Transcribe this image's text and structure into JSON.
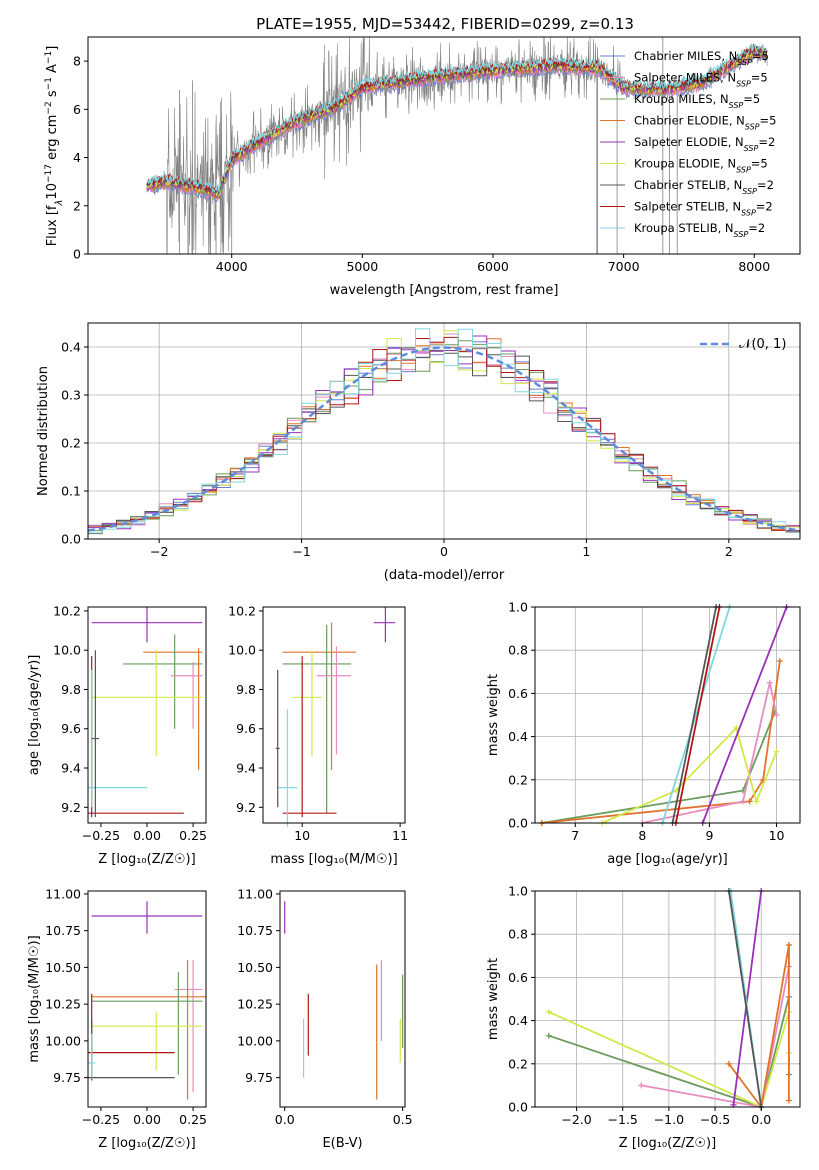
{
  "title": "PLATE=1955, MJD=53442, FIBERID=0299, z=0.13",
  "colors": {
    "Chabrier MILES": "#6a7fd0",
    "Salpeter MILES": "#e88cbf",
    "Kroupa MILES": "#6a9c5c",
    "Chabrier ELODIE": "#e0742c",
    "Salpeter ELODIE": "#9a30b8",
    "Kroupa ELODIE": "#d2e84a",
    "Chabrier STELIB": "#555555",
    "Salpeter STELIB": "#b01818",
    "Kroupa STELIB": "#7fd7e0",
    "data": "#808080",
    "normal": "#5e8cdc"
  },
  "chart_data": [
    {
      "id": "spectrum",
      "type": "line",
      "title": "PLATE=1955, MJD=53442, FIBERID=0299, z=0.13",
      "xlabel": "wavelength [Angstrom, rest frame]",
      "ylabel_parts": [
        "Flux [f",
        "λ",
        "10",
        "−17",
        " erg cm",
        "−2",
        " s",
        "−1",
        " A",
        "−1",
        "]"
      ],
      "xlim": [
        2900,
        8350
      ],
      "ylim": [
        0,
        9
      ],
      "xticks": [
        4000,
        5000,
        6000,
        7000,
        8000
      ],
      "yticks": [
        0,
        2,
        4,
        6,
        8
      ],
      "legend": [
        {
          "model": "Chabrier MILES",
          "label": "Chabrier MILES, N",
          "sub": "SSP",
          "tail": "=5"
        },
        {
          "model": "Salpeter MILES",
          "label": "Salpeter MILES, N",
          "sub": "SSP",
          "tail": "=5"
        },
        {
          "model": "Kroupa MILES",
          "label": "Kroupa MILES, N",
          "sub": "SSP",
          "tail": "=5"
        },
        {
          "model": "Chabrier ELODIE",
          "label": "Chabrier ELODIE, N",
          "sub": "SSP",
          "tail": "=5"
        },
        {
          "model": "Salpeter ELODIE",
          "label": "Salpeter ELODIE, N",
          "sub": "SSP",
          "tail": "=2"
        },
        {
          "model": "Kroupa ELODIE",
          "label": "Kroupa ELODIE, N",
          "sub": "SSP",
          "tail": "=5"
        },
        {
          "model": "Chabrier STELIB",
          "label": "Chabrier STELIB, N",
          "sub": "SSP",
          "tail": "=2"
        },
        {
          "model": "Salpeter STELIB",
          "label": "Salpeter STELIB, N",
          "sub": "SSP",
          "tail": "=2"
        },
        {
          "model": "Kroupa STELIB",
          "label": "Kroupa STELIB, N",
          "sub": "SSP",
          "tail": "=2"
        }
      ],
      "continuum": {
        "x": [
          3350,
          3500,
          3700,
          3900,
          4000,
          4200,
          4500,
          4800,
          5000,
          5500,
          6000,
          6500,
          6800,
          7000,
          7300,
          7600,
          8000,
          8100
        ],
        "y": [
          2.8,
          3.0,
          2.8,
          2.5,
          3.9,
          4.6,
          5.5,
          6.1,
          6.9,
          7.3,
          7.6,
          7.8,
          7.7,
          6.9,
          6.8,
          7.1,
          8.4,
          8.2
        ]
      }
    },
    {
      "id": "residuals",
      "type": "line",
      "xlabel": "(data-model)/error",
      "ylabel": "Normed distribution",
      "xlim": [
        -2.5,
        2.5
      ],
      "ylim": [
        0,
        0.45
      ],
      "xticks": [
        -2,
        -1,
        0,
        1,
        2
      ],
      "yticks": [
        0.0,
        0.1,
        0.2,
        0.3,
        0.4
      ],
      "legend": "upper right",
      "normal_label": "𝒩(0, 1)",
      "grid": true
    },
    {
      "id": "age-vs-Z",
      "type": "scatter",
      "xlabel": "Z [log₁₀(Z/Z☉)]",
      "ylabel": "age  [log₁₀(age/yr)]",
      "xlim": [
        -0.32,
        0.32
      ],
      "ylim": [
        9.12,
        10.22
      ],
      "xticks": [
        -0.25,
        0.0,
        0.25
      ],
      "xticklabels": [
        "−0.25",
        "0.00",
        "0.25"
      ],
      "yticks": [
        9.2,
        9.4,
        9.6,
        9.8,
        10.0,
        10.2
      ],
      "points": [
        {
          "model": "Salpeter ELODIE",
          "x": 0.0,
          "xerr": [
            0.3,
            0.3
          ],
          "y": 10.14,
          "yerr": [
            0.1,
            0.08
          ]
        },
        {
          "model": "Chabrier ELODIE",
          "x": 0.28,
          "xerr": [
            0.3,
            0.02
          ],
          "y": 9.99,
          "yerr": [
            0.6,
            0.02
          ]
        },
        {
          "model": "Kroupa MILES",
          "x": 0.15,
          "xerr": [
            0.28,
            0.15
          ],
          "y": 9.93,
          "yerr": [
            0.33,
            0.15
          ]
        },
        {
          "model": "Salpeter MILES",
          "x": 0.25,
          "xerr": [
            0.12,
            0.05
          ],
          "y": 9.87,
          "yerr": [
            0.27,
            0.07
          ]
        },
        {
          "model": "Kroupa ELODIE",
          "x": 0.05,
          "xerr": [
            0.35,
            0.25
          ],
          "y": 9.76,
          "yerr": [
            0.3,
            0.24
          ]
        },
        {
          "model": "Salpeter STELIB",
          "x": -0.3,
          "xerr": [
            0.02,
            0.5
          ],
          "y": 9.17,
          "yerr": [
            0.02,
            0.8
          ]
        },
        {
          "model": "Kroupa STELIB",
          "x": -0.3,
          "xerr": [
            0.02,
            0.3
          ],
          "y": 9.3,
          "yerr": [
            0.1,
            0.6
          ]
        },
        {
          "model": "Chabrier STELIB",
          "x": -0.28,
          "xerr": [
            0.02,
            0.02
          ],
          "y": 9.55,
          "yerr": [
            0.4,
            0.45
          ]
        }
      ]
    },
    {
      "id": "age-vs-mass",
      "type": "scatter",
      "xlabel": "mass [log₁₀(M/M☉)]",
      "xlim": [
        9.6,
        11.05
      ],
      "ylim": [
        9.12,
        10.22
      ],
      "xticks": [
        10,
        11
      ],
      "yticks": [
        9.2,
        9.4,
        9.6,
        9.8,
        10.0,
        10.2
      ],
      "points": [
        {
          "model": "Salpeter ELODIE",
          "x": 10.85,
          "xerr": [
            0.12,
            0.1
          ],
          "y": 10.14,
          "yerr": [
            0.1,
            0.08
          ]
        },
        {
          "model": "Chabrier ELODIE",
          "x": 10.3,
          "xerr": [
            0.5,
            0.25
          ],
          "y": 9.99,
          "yerr": [
            0.6,
            0.15
          ]
        },
        {
          "model": "Kroupa MILES",
          "x": 10.25,
          "xerr": [
            0.45,
            0.25
          ],
          "y": 9.93,
          "yerr": [
            0.76,
            0.2
          ]
        },
        {
          "model": "Salpeter MILES",
          "x": 10.35,
          "xerr": [
            0.2,
            0.15
          ],
          "y": 9.87,
          "yerr": [
            0.4,
            0.15
          ]
        },
        {
          "model": "Kroupa ELODIE",
          "x": 10.1,
          "xerr": [
            0.2,
            0.1
          ],
          "y": 9.76,
          "yerr": [
            0.3,
            0.24
          ]
        },
        {
          "model": "Salpeter STELIB",
          "x": 10.0,
          "xerr": [
            0.2,
            0.35
          ],
          "y": 9.17,
          "yerr": [
            0.02,
            0.8
          ]
        },
        {
          "model": "Kroupa STELIB",
          "x": 9.85,
          "xerr": [
            0.1,
            0.1
          ],
          "y": 9.3,
          "yerr": [
            0.2,
            0.4
          ]
        },
        {
          "model": "Chabrier STELIB",
          "x": 9.75,
          "xerr": [
            0.02,
            0.02
          ],
          "y": 9.5,
          "yerr": [
            0.3,
            0.4
          ]
        }
      ]
    },
    {
      "id": "mass-weight-vs-age",
      "type": "line",
      "xlabel": "age  [log₁₀(age/yr)]",
      "ylabel": "mass weight",
      "xlim": [
        6.4,
        10.35
      ],
      "ylim": [
        0,
        1
      ],
      "xticks": [
        7,
        8,
        9,
        10
      ],
      "yticks": [
        0.0,
        0.2,
        0.4,
        0.6,
        0.8,
        1.0
      ],
      "grid": true,
      "series": [
        {
          "model": "Kroupa MILES",
          "x": [
            6.5,
            9.5,
            9.97
          ],
          "y": [
            0.0,
            0.15,
            0.51
          ]
        },
        {
          "model": "Chabrier ELODIE",
          "x": [
            6.5,
            9.6,
            9.8,
            10.05
          ],
          "y": [
            0.0,
            0.1,
            0.2,
            0.75
          ]
        },
        {
          "model": "Salpeter MILES",
          "x": [
            8.0,
            9.5,
            9.9,
            10.0
          ],
          "y": [
            0.0,
            0.1,
            0.65,
            0.5
          ]
        },
        {
          "model": "Kroupa ELODIE",
          "x": [
            7.4,
            8.5,
            9.4,
            9.7,
            10.0
          ],
          "y": [
            0.0,
            0.15,
            0.44,
            0.1,
            0.33
          ]
        },
        {
          "model": "Salpeter ELODIE",
          "x": [
            8.9,
            10.15
          ],
          "y": [
            0.0,
            1.0
          ]
        },
        {
          "model": "Kroupa STELIB",
          "x": [
            8.3,
            9.3
          ],
          "y": [
            0.0,
            1.0
          ]
        },
        {
          "model": "Salpeter STELIB",
          "x": [
            8.5,
            9.15
          ],
          "y": [
            0.0,
            1.0
          ]
        },
        {
          "model": "Chabrier STELIB",
          "x": [
            8.45,
            9.1
          ],
          "y": [
            0.0,
            1.0
          ]
        }
      ]
    },
    {
      "id": "mass-vs-Z",
      "type": "scatter",
      "xlabel": "Z [log₁₀(Z/Z☉)]",
      "ylabel": "mass [log₁₀(M/M☉)]",
      "xlim": [
        -0.32,
        0.32
      ],
      "ylim": [
        9.55,
        11.02
      ],
      "xticks": [
        -0.25,
        0.0,
        0.25
      ],
      "xticklabels": [
        "−0.25",
        "0.00",
        "0.25"
      ],
      "yticks": [
        9.75,
        10.0,
        10.25,
        10.5,
        10.75,
        11.0
      ],
      "points": [
        {
          "model": "Salpeter ELODIE",
          "x": 0.0,
          "xerr": [
            0.3,
            0.3
          ],
          "y": 10.85,
          "yerr": [
            0.12,
            0.1
          ]
        },
        {
          "model": "Salpeter MILES",
          "x": 0.25,
          "xerr": [
            0.1,
            0.05
          ],
          "y": 10.35,
          "yerr": [
            0.7,
            0.2
          ]
        },
        {
          "model": "Chabrier ELODIE",
          "x": 0.22,
          "xerr": [
            0.52,
            0.1
          ],
          "y": 10.3,
          "yerr": [
            0.7,
            0.25
          ]
        },
        {
          "model": "Kroupa MILES",
          "x": 0.17,
          "xerr": [
            0.47,
            0.13
          ],
          "y": 10.27,
          "yerr": [
            0.5,
            0.2
          ]
        },
        {
          "model": "Kroupa ELODIE",
          "x": 0.05,
          "xerr": [
            0.35,
            0.25
          ],
          "y": 10.1,
          "yerr": [
            0.3,
            0.1
          ]
        },
        {
          "model": "Salpeter STELIB",
          "x": -0.3,
          "xerr": [
            0.02,
            0.45
          ],
          "y": 9.92,
          "yerr": [
            0.02,
            0.4
          ]
        },
        {
          "model": "Chabrier STELIB",
          "x": -0.3,
          "xerr": [
            0.02,
            0.45
          ],
          "y": 9.75,
          "yerr": [
            0.02,
            0.4
          ]
        },
        {
          "model": "Kroupa STELIB",
          "x": -0.3,
          "xerr": [
            0.02,
            0.02
          ],
          "y": 9.85,
          "yerr": [
            0.1,
            0.2
          ]
        }
      ]
    },
    {
      "id": "mass-vs-EBV",
      "type": "scatter",
      "xlabel": "E(B-V)",
      "xlim": [
        -0.02,
        0.51
      ],
      "ylim": [
        9.55,
        11.02
      ],
      "xticks": [
        0.0,
        0.5
      ],
      "yticks": [
        9.75,
        10.0,
        10.25,
        10.5,
        10.75,
        11.0
      ],
      "points": [
        {
          "model": "Salpeter ELODIE",
          "x": 0.0,
          "xerr": [
            0.0,
            0.0
          ],
          "y": 10.85,
          "yerr": [
            0.12,
            0.1
          ]
        },
        {
          "model": "Kroupa STELIB",
          "x": 0.08,
          "xerr": [
            0.0,
            0.0
          ],
          "y": 9.95,
          "yerr": [
            0.2,
            0.2
          ]
        },
        {
          "model": "Salpeter STELIB",
          "x": 0.1,
          "xerr": [
            0.0,
            0.0
          ],
          "y": 10.1,
          "yerr": [
            0.2,
            0.22
          ]
        },
        {
          "model": "Chabrier ELODIE",
          "x": 0.39,
          "xerr": [
            0.0,
            0.0
          ],
          "y": 10.05,
          "yerr": [
            0.45,
            0.47
          ]
        },
        {
          "model": "Salpeter MILES",
          "x": 0.41,
          "xerr": [
            0.0,
            0.0
          ],
          "y": 10.25,
          "yerr": [
            0.25,
            0.3
          ]
        },
        {
          "model": "Kroupa MILES",
          "x": 0.5,
          "xerr": [
            0.0,
            0.0
          ],
          "y": 10.2,
          "yerr": [
            0.25,
            0.25
          ]
        },
        {
          "model": "Kroupa ELODIE",
          "x": 0.49,
          "xerr": [
            0.0,
            0.0
          ],
          "y": 10.0,
          "yerr": [
            0.15,
            0.15
          ]
        }
      ]
    },
    {
      "id": "mass-weight-vs-Z",
      "type": "line",
      "xlabel": "Z [log₁₀(Z/Z☉)]",
      "ylabel": "mass weight",
      "xlim": [
        -2.45,
        0.42
      ],
      "ylim": [
        0,
        1
      ],
      "xticks": [
        -2.0,
        -1.5,
        -1.0,
        -0.5,
        0.0
      ],
      "xticklabels": [
        "−2.0",
        "−1.5",
        "−1.0",
        "−0.5",
        "0.0"
      ],
      "yticks": [
        0.0,
        0.2,
        0.4,
        0.6,
        0.8,
        1.0
      ],
      "grid": true,
      "series": [
        {
          "model": "Kroupa MILES",
          "x": [
            -2.3,
            0.0,
            0.3,
            0.3
          ],
          "y": [
            0.33,
            0.0,
            0.51,
            0.15
          ]
        },
        {
          "model": "Kroupa ELODIE",
          "x": [
            -2.3,
            0.0,
            0.3,
            0.3
          ],
          "y": [
            0.44,
            0.0,
            0.44,
            0.25
          ]
        },
        {
          "model": "Salpeter MILES",
          "x": [
            -1.3,
            0.0,
            0.3,
            0.3
          ],
          "y": [
            0.1,
            0.0,
            0.65,
            0.75
          ]
        },
        {
          "model": "Chabrier ELODIE",
          "x": [
            -0.35,
            0.0,
            0.3,
            0.3
          ],
          "y": [
            0.2,
            0.0,
            0.75,
            0.03
          ]
        },
        {
          "model": "Salpeter ELODIE",
          "x": [
            -0.3,
            0.0
          ],
          "y": [
            0.01,
            1.0
          ]
        },
        {
          "model": "Kroupa STELIB",
          "x": [
            -0.33,
            0.0
          ],
          "y": [
            1.0,
            0.0
          ]
        },
        {
          "model": "Chabrier STELIB",
          "x": [
            -0.35,
            0.0
          ],
          "y": [
            1.0,
            0.0
          ]
        }
      ]
    }
  ]
}
